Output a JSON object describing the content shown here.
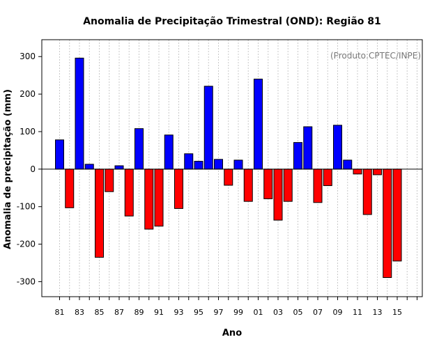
{
  "chart_data": {
    "type": "bar",
    "title": "Anomalia de Precipitação Trimestral (OND): Região 81",
    "credit": "(Produto:CPTEC/INPE)",
    "xlabel": "Ano",
    "ylabel": "Anomalia de precipitação (mm)",
    "ylim": [
      -340,
      345
    ],
    "yticks": [
      -300,
      -200,
      -100,
      0,
      100,
      200,
      300
    ],
    "xtick_labels": [
      "81",
      "83",
      "85",
      "87",
      "89",
      "91",
      "93",
      "95",
      "97",
      "99",
      "01",
      "03",
      "05",
      "07",
      "09",
      "11",
      "13",
      "15"
    ],
    "categories": [
      "81",
      "82",
      "83",
      "84",
      "85",
      "86",
      "87",
      "88",
      "89",
      "90",
      "91",
      "92",
      "93",
      "94",
      "95",
      "96",
      "97",
      "98",
      "99",
      "00",
      "01",
      "02",
      "03",
      "04",
      "05",
      "06",
      "07",
      "08",
      "09",
      "10",
      "11",
      "12",
      "13",
      "14",
      "15",
      "16",
      "17"
    ],
    "values": [
      78,
      -103,
      296,
      13,
      -235,
      -60,
      9,
      -125,
      108,
      -160,
      -152,
      91,
      -105,
      41,
      21,
      221,
      26,
      -43,
      24,
      -86,
      240,
      -79,
      -136,
      -86,
      71,
      113,
      -89,
      -44,
      117,
      24,
      -13,
      -121,
      -15,
      -289,
      -245,
      null,
      null
    ],
    "colors": {
      "positive": "#0000ff",
      "negative": "#ff0000"
    },
    "grid": true
  }
}
